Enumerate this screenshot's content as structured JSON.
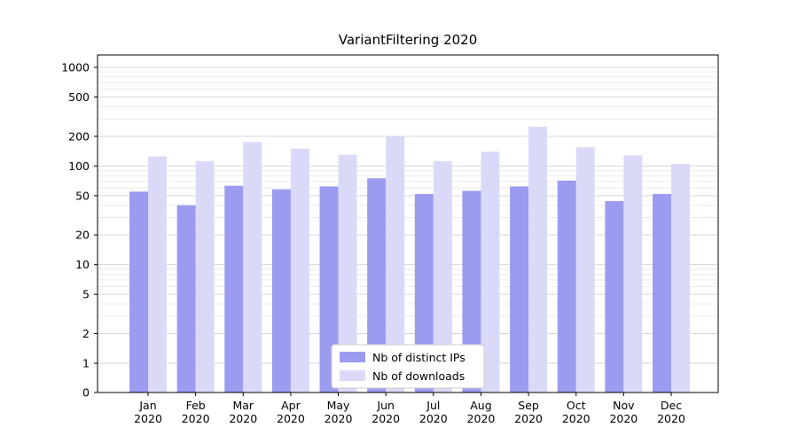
{
  "figure": {
    "background": "#ffffff"
  },
  "chart_data": {
    "type": "bar",
    "title": "VariantFiltering 2020",
    "categories": [
      "Jan",
      "Feb",
      "Mar",
      "Apr",
      "May",
      "Jun",
      "Jul",
      "Aug",
      "Sep",
      "Oct",
      "Nov",
      "Dec"
    ],
    "xtick_year": "2020",
    "series": [
      {
        "name": "Nb of distinct IPs",
        "color": "#9b9bef",
        "values": [
          55,
          40,
          63,
          58,
          62,
          75,
          52,
          56,
          62,
          71,
          44,
          52
        ]
      },
      {
        "name": "Nb of downloads",
        "color": "#dadaf8",
        "values": [
          125,
          112,
          175,
          150,
          130,
          200,
          112,
          140,
          250,
          155,
          128,
          105
        ]
      }
    ],
    "yscale": "log",
    "ylim": [
      0,
      1000
    ],
    "yticks": [
      0,
      1,
      2,
      5,
      10,
      20,
      50,
      100,
      200,
      500,
      1000
    ],
    "y_minor_gridlines": [
      3,
      4,
      6,
      7,
      8,
      9,
      30,
      40,
      60,
      70,
      80,
      90,
      300,
      400,
      600,
      700,
      800,
      900
    ],
    "grid": true,
    "legend_position": "lower center",
    "colors": {
      "major_gridline": "#d6d6d6",
      "minor_gridline": "#ebebeb",
      "axis": "#000000",
      "legend_border": "#cccccc",
      "legend_background": "#ffffff"
    }
  }
}
